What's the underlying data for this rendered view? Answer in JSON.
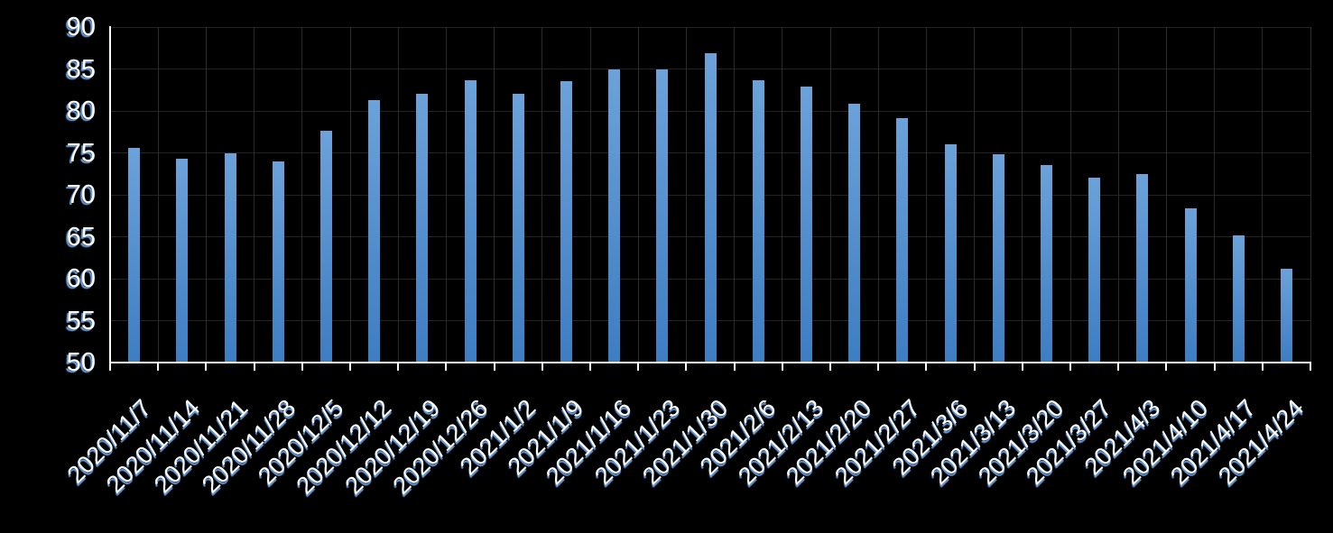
{
  "chart_data": {
    "type": "bar",
    "title": "",
    "xlabel": "",
    "ylabel": "",
    "categories": [
      "2020/11/7",
      "2020/11/14",
      "2020/11/21",
      "2020/11/28",
      "2020/12/5",
      "2020/12/12",
      "2020/12/19",
      "2020/12/26",
      "2021/1/2",
      "2021/1/9",
      "2021/1/16",
      "2021/1/23",
      "2021/1/30",
      "2021/2/6",
      "2021/2/13",
      "2021/2/20",
      "2021/2/27",
      "2021/3/6",
      "2021/3/13",
      "2021/3/20",
      "2021/3/27",
      "2021/4/3",
      "2021/4/10",
      "2021/4/17",
      "2021/4/24"
    ],
    "values": [
      75.6,
      74.3,
      74.9,
      74.0,
      77.6,
      81.3,
      82.0,
      83.7,
      82.0,
      83.5,
      84.9,
      84.9,
      86.9,
      83.7,
      82.9,
      80.9,
      79.1,
      76.0,
      74.8,
      73.6,
      72.0,
      72.5,
      68.4,
      65.2,
      61.2
    ],
    "ylim": [
      50,
      90
    ],
    "yticks": [
      90,
      85,
      80,
      75,
      70,
      65,
      60,
      55,
      50
    ],
    "x_label_rotation_deg": 45,
    "grid": "both",
    "legend": "none",
    "colors": {
      "background": "#000000",
      "bar_gradient_top": "#6ca2d9",
      "bar_gradient_bottom": "#3d7dc2",
      "gridline_horizontal": "#232323",
      "gridline_vertical": "#2b2b2b",
      "axis_line": "#ffffff",
      "label_text": "#ffffff",
      "label_shadow": "#699ddc"
    }
  }
}
